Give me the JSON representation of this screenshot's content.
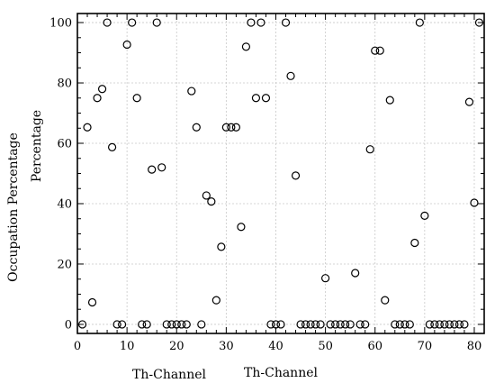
{
  "chart_data": {
    "type": "scatter",
    "title": "",
    "xlabel": "Th-Channel",
    "xlabel_repeat": "Th-Channel",
    "ylabel": "Occupation Percentage",
    "ylabel_repeat": "Percentage",
    "xlim": [
      0,
      82
    ],
    "ylim": [
      -3,
      103
    ],
    "xticks": [
      0,
      10,
      20,
      30,
      40,
      50,
      60,
      70,
      80
    ],
    "yticks": [
      0,
      20,
      40,
      60,
      80,
      100
    ],
    "grid": true,
    "marker": "open-circle",
    "series": [
      {
        "x": [
          1,
          2,
          3,
          4,
          5,
          6,
          7,
          8,
          9,
          10,
          11,
          12,
          13,
          14,
          15,
          16,
          17,
          18,
          19,
          20,
          21,
          22,
          23,
          24,
          25,
          26,
          27,
          28,
          29,
          30,
          31,
          32,
          33,
          34,
          35,
          36,
          37,
          38,
          39,
          40,
          41,
          42,
          43,
          44,
          45,
          46,
          47,
          48,
          49,
          50,
          51,
          52,
          53,
          54,
          55,
          56,
          57,
          58,
          59,
          60,
          61,
          62,
          63,
          64,
          65,
          66,
          67,
          68,
          69,
          70,
          71,
          72,
          73,
          74,
          75,
          76,
          77,
          78,
          79,
          80,
          81
        ],
        "y": [
          0,
          65.3,
          7.3,
          75,
          78,
          100,
          58.7,
          0,
          0,
          92.7,
          100,
          75,
          0,
          0,
          51.3,
          100,
          52,
          0,
          0,
          0,
          0,
          0,
          77.3,
          65.3,
          0,
          42.7,
          40.7,
          8,
          25.7,
          65.3,
          65.3,
          65.3,
          32.3,
          92,
          100,
          75,
          100,
          75,
          0,
          0,
          0,
          100,
          82.3,
          49.3,
          0,
          0,
          0,
          0,
          0,
          15.3,
          0,
          0,
          0,
          0,
          0,
          17,
          0,
          0,
          58,
          90.7,
          90.7,
          8,
          74.3,
          0,
          0,
          0,
          0,
          27,
          100,
          36,
          0,
          0,
          0,
          0,
          0,
          0,
          0,
          0,
          73.7,
          40.3,
          100
        ]
      }
    ]
  }
}
